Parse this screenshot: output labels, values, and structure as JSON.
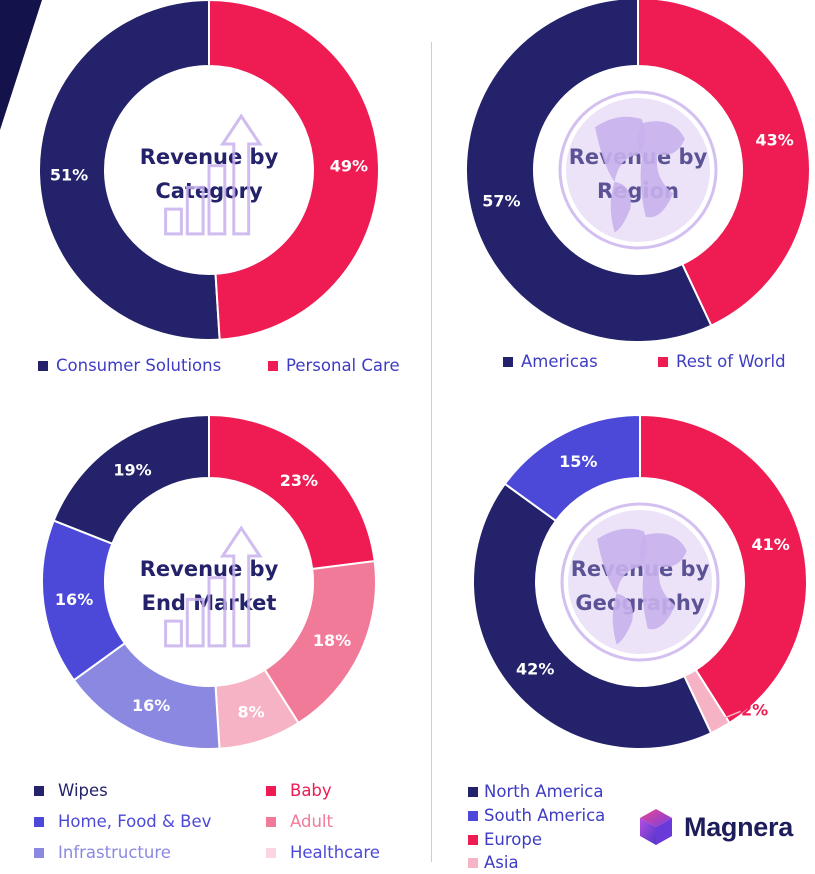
{
  "colors": {
    "navy": "#23226a",
    "red": "#ee1c52",
    "blue": "#4c49d9",
    "pink": "#f27a99",
    "lavender": "#8b88e2",
    "light_pink": "#f7b3c6",
    "very_light_pink": "#fbd6e1",
    "title": "#23226a",
    "legend_text": "#3e3cc4",
    "ghost_art": "#c8b0ec"
  },
  "chart_data": [
    {
      "type": "donut",
      "title_lines": [
        "Revenue by",
        "Category"
      ],
      "categories": [
        "Consumer Solutions",
        "Personal Care"
      ],
      "values": [
        51,
        49
      ],
      "labels": [
        "51%",
        "49%"
      ],
      "unit": "%",
      "background_art": "bar-growth-arrow-icon",
      "legend_placement": "bottom"
    },
    {
      "type": "donut",
      "title_lines": [
        "Revenue by",
        "Region"
      ],
      "categories": [
        "Americas",
        "Rest of World"
      ],
      "values": [
        57,
        43
      ],
      "labels": [
        "57%",
        "43%"
      ],
      "unit": "%",
      "background_art": "globe-icon",
      "legend_placement": "bottom"
    },
    {
      "type": "donut",
      "title_lines": [
        "Revenue by",
        "End Market"
      ],
      "categories": [
        "Wipes",
        "Home, Food & Bev",
        "Infrastructure",
        "Baby",
        "Adult",
        "Healthcare"
      ],
      "values": [
        19,
        16,
        16,
        23,
        18,
        8
      ],
      "labels": [
        "19%",
        "16%",
        "16%",
        "23%",
        "18%",
        "8%"
      ],
      "unit": "%",
      "background_art": "bar-growth-arrow-icon",
      "legend_placement": "bottom"
    },
    {
      "type": "donut",
      "title_lines": [
        "Revenue by",
        "Geography"
      ],
      "categories": [
        "North America",
        "South America",
        "Europe",
        "Asia"
      ],
      "values": [
        42,
        15,
        41,
        2
      ],
      "labels": [
        "42%",
        "15%",
        "41%",
        "2%"
      ],
      "unit": "%",
      "background_art": "globe-icon",
      "legend_placement": "bottom"
    }
  ],
  "brand": {
    "name": "Magnera"
  }
}
